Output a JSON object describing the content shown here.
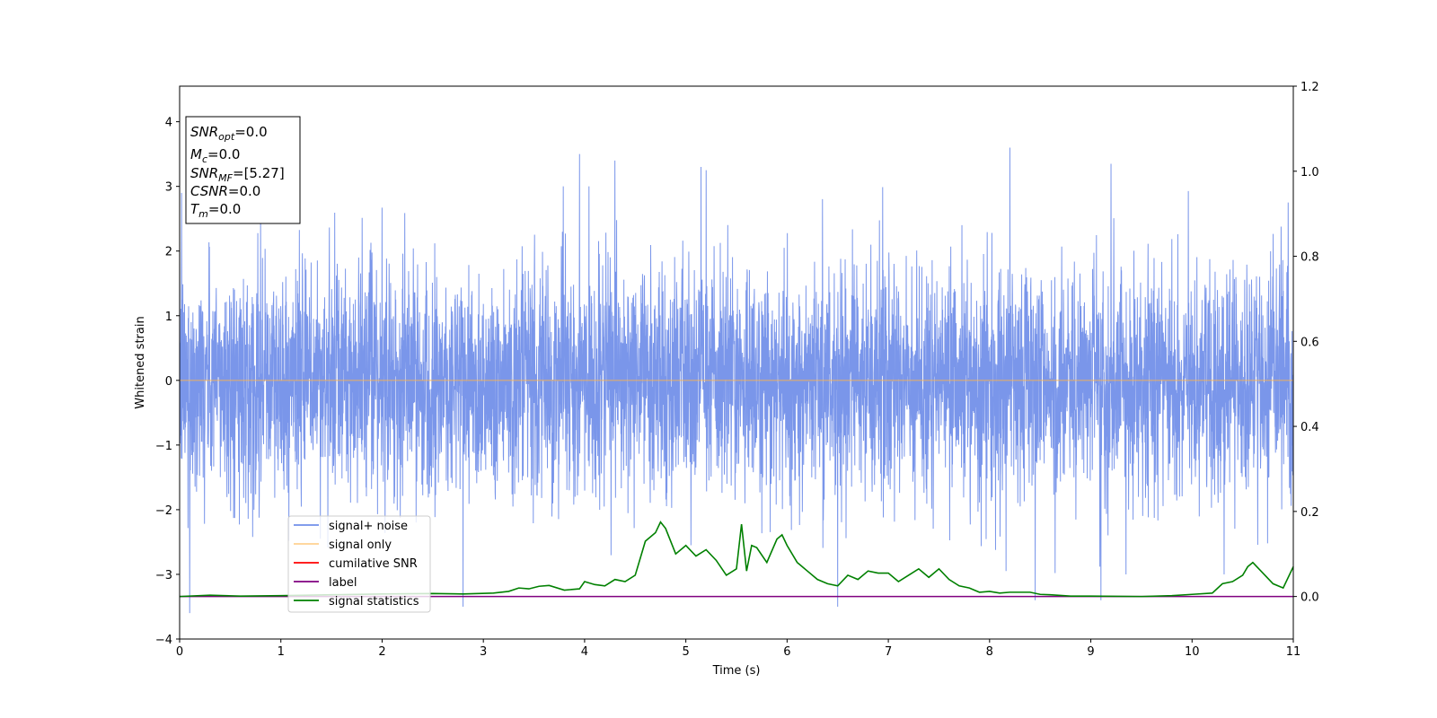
{
  "chart_data": {
    "type": "line",
    "xlabel": "Time (s)",
    "ylabel": "Whitened strain",
    "title": "",
    "xlim": [
      0,
      11
    ],
    "ylim": [
      -4,
      4.55
    ],
    "y2lim": [
      -0.1,
      1.2
    ],
    "x_ticks": [
      0,
      1,
      2,
      3,
      4,
      5,
      6,
      7,
      8,
      9,
      10,
      11
    ],
    "y_ticks": [
      -4,
      -3,
      -2,
      -1,
      0,
      1,
      2,
      3,
      4
    ],
    "y2_ticks": [
      0.0,
      0.2,
      0.4,
      0.6,
      0.8,
      1.0,
      1.2
    ],
    "grid": false,
    "legend_position": "lower-left",
    "info_box": {
      "lines": [
        {
          "main": "SNR",
          "sub": "opt",
          "value": "=0.0"
        },
        {
          "main": "M",
          "sub": "c",
          "value": "=0.0"
        },
        {
          "main": "SNR",
          "sub": "MF",
          "value": "=[5.27]"
        },
        {
          "main": "CSNR",
          "sub": "",
          "value": "=0.0"
        },
        {
          "main": "T",
          "sub": "m",
          "value": "=0.0"
        }
      ]
    },
    "series": [
      {
        "name": "signal+ noise",
        "color": "#4169e1",
        "axis": "left",
        "kind": "noise",
        "note_amplitude_sigma": 0.75,
        "peaks": [
          [
            0.02,
            2.9
          ],
          [
            0.1,
            -3.6
          ],
          [
            0.8,
            2.6
          ],
          [
            2.8,
            -3.5
          ],
          [
            3.95,
            3.5
          ],
          [
            4.3,
            3.4
          ],
          [
            5.15,
            3.3
          ],
          [
            5.2,
            3.25
          ],
          [
            6.5,
            -3.5
          ],
          [
            8.2,
            3.6
          ],
          [
            8.45,
            -3.4
          ],
          [
            9.2,
            3.35
          ],
          [
            9.1,
            -3.4
          ],
          [
            10.95,
            2.75
          ]
        ]
      },
      {
        "name": "signal only",
        "color": "#ffb347",
        "axis": "left",
        "kind": "constant",
        "value": 0.0
      },
      {
        "name": "cumilative SNR",
        "color": "#ff0000",
        "axis": "right",
        "kind": "line",
        "x": [],
        "y": []
      },
      {
        "name": "label",
        "color": "#800080",
        "axis": "right",
        "kind": "constant",
        "value": 0.0
      },
      {
        "name": "signal statistics",
        "color": "#008000",
        "axis": "right",
        "kind": "line",
        "x": [
          0,
          0.3,
          0.6,
          1.0,
          1.5,
          2.0,
          2.5,
          2.8,
          3.1,
          3.25,
          3.35,
          3.45,
          3.55,
          3.65,
          3.8,
          3.95,
          4.0,
          4.1,
          4.2,
          4.3,
          4.4,
          4.5,
          4.6,
          4.7,
          4.75,
          4.8,
          4.9,
          5.0,
          5.1,
          5.2,
          5.3,
          5.4,
          5.5,
          5.55,
          5.6,
          5.65,
          5.7,
          5.8,
          5.9,
          5.95,
          6.0,
          6.1,
          6.2,
          6.3,
          6.4,
          6.5,
          6.6,
          6.7,
          6.8,
          6.9,
          7.0,
          7.1,
          7.2,
          7.3,
          7.4,
          7.5,
          7.6,
          7.7,
          7.8,
          7.9,
          8.0,
          8.1,
          8.2,
          8.3,
          8.4,
          8.5,
          8.6,
          8.8,
          9.0,
          9.5,
          9.8,
          10.0,
          10.2,
          10.3,
          10.4,
          10.5,
          10.55,
          10.6,
          10.7,
          10.8,
          10.9,
          11.0
        ],
        "y": [
          0.0,
          0.003,
          0.001,
          0.002,
          0.004,
          0.006,
          0.007,
          0.006,
          0.008,
          0.012,
          0.02,
          0.018,
          0.024,
          0.026,
          0.015,
          0.018,
          0.035,
          0.028,
          0.025,
          0.04,
          0.035,
          0.05,
          0.13,
          0.15,
          0.175,
          0.16,
          0.1,
          0.12,
          0.095,
          0.11,
          0.085,
          0.05,
          0.065,
          0.17,
          0.06,
          0.12,
          0.115,
          0.08,
          0.135,
          0.145,
          0.12,
          0.08,
          0.06,
          0.04,
          0.03,
          0.025,
          0.05,
          0.04,
          0.06,
          0.055,
          0.055,
          0.035,
          0.05,
          0.065,
          0.045,
          0.065,
          0.04,
          0.025,
          0.02,
          0.01,
          0.012,
          0.008,
          0.01,
          0.01,
          0.01,
          0.005,
          0.004,
          0.001,
          0.001,
          0.0,
          0.002,
          0.005,
          0.008,
          0.03,
          0.035,
          0.05,
          0.07,
          0.08,
          0.055,
          0.03,
          0.02,
          0.07
        ]
      }
    ]
  }
}
